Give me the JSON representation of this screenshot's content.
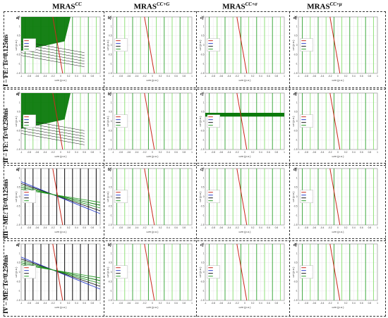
{
  "columns": [
    {
      "base": "MRAS",
      "sup": "CC"
    },
    {
      "base": "MRAS",
      "sup": "CC+G"
    },
    {
      "base": "MRAS",
      "sup": "CC+σ"
    },
    {
      "base": "MRAS",
      "sup": "CC+μ"
    }
  ],
  "rows": [
    {
      "label": "I – FE: Ts=0.125ms"
    },
    {
      "label": "II – FE: Ts=0.250ms"
    },
    {
      "label": "III – ME: Ts=0.125ms"
    },
    {
      "label": "IV – ME: Ts=0.250ms"
    }
  ],
  "panel_letters": [
    "a)",
    "b)",
    "c)",
    "d)"
  ],
  "axis": {
    "xlabel": "ωm (p.u.)",
    "ylabel": "ωr (p.u.)"
  },
  "colors": {
    "red": "#cc2a1e",
    "blue": "#2a3fcc",
    "dark": "#1a1a1a",
    "green": "#2da02d",
    "lightgreen": "#86dd6e",
    "darkgreen": "#0b7a0b"
  },
  "chart_data": {
    "type": "line",
    "xlim": [
      -1,
      1
    ],
    "ylim": [
      -1.5,
      1.5
    ],
    "x_ticks": [
      -1,
      -0.8,
      -0.6,
      -0.4,
      -0.2,
      0,
      0.2,
      0.4,
      0.6,
      0.8,
      1
    ],
    "y_ticks": [
      -1.5,
      -1,
      -0.5,
      0,
      0.5,
      1,
      1.5
    ],
    "x_tick_labels": [
      "-1",
      "-0.8",
      "-0.6",
      "-0.4",
      "-0.2",
      "0",
      "0.2",
      "0.4",
      "0.6",
      "0.8",
      "1"
    ],
    "y_tick_labels": [
      "-1.5",
      "-1",
      "-0.5",
      "0",
      "0.5",
      "1",
      "1.5"
    ],
    "grid": true,
    "legend_position": "left-middle",
    "reference_line": {
      "x": [
        -0.2,
        0.05
      ],
      "y": [
        1.5,
        -1.5
      ]
    },
    "stable_boundaries": [
      -0.9,
      -0.7,
      -0.5,
      -0.3,
      -0.1,
      0.1,
      0.3,
      0.5,
      0.7,
      0.9
    ],
    "panels": [
      {
        "row": 0,
        "col": 0,
        "mode": "fill",
        "fill_band": [
          0.2,
          1.5
        ]
      },
      {
        "row": 0,
        "col": 1,
        "mode": "lines"
      },
      {
        "row": 0,
        "col": 2,
        "mode": "lines"
      },
      {
        "row": 0,
        "col": 3,
        "mode": "lines"
      },
      {
        "row": 1,
        "col": 0,
        "mode": "fill",
        "fill_band": [
          0.1,
          1.5
        ]
      },
      {
        "row": 1,
        "col": 1,
        "mode": "lines"
      },
      {
        "row": 1,
        "col": 2,
        "mode": "band",
        "fill_band": [
          0.25,
          0.45
        ]
      },
      {
        "row": 1,
        "col": 3,
        "mode": "lines"
      },
      {
        "row": 2,
        "col": 0,
        "mode": "cross"
      },
      {
        "row": 2,
        "col": 1,
        "mode": "lines"
      },
      {
        "row": 2,
        "col": 2,
        "mode": "lines"
      },
      {
        "row": 2,
        "col": 3,
        "mode": "lines"
      },
      {
        "row": 3,
        "col": 0,
        "mode": "cross"
      },
      {
        "row": 3,
        "col": 1,
        "mode": "lines"
      },
      {
        "row": 3,
        "col": 2,
        "mode": "lines"
      },
      {
        "row": 3,
        "col": 3,
        "mode": "lines"
      }
    ]
  }
}
